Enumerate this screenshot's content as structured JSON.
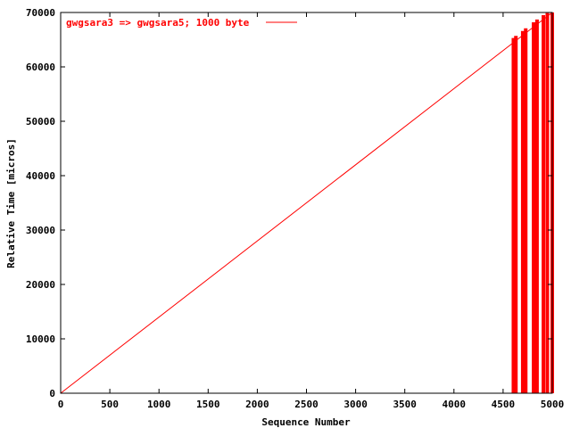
{
  "chart_data": {
    "type": "line",
    "title": "",
    "xlabel": "Sequence Number",
    "ylabel": "Relative Time [micros]",
    "xlim": [
      0,
      5000
    ],
    "ylim": [
      0,
      70000
    ],
    "x_ticks": [
      0,
      500,
      1000,
      1500,
      2000,
      2500,
      3000,
      3500,
      4000,
      4500,
      5000
    ],
    "y_ticks": [
      0,
      10000,
      20000,
      30000,
      40000,
      50000,
      60000,
      70000
    ],
    "grid": false,
    "legend_position": "top-left",
    "series": [
      {
        "name": "gwgsara3 => gwgsara5; 1000 byte",
        "color": "#ff0000",
        "line": {
          "x": [
            0,
            5000
          ],
          "y": [
            0,
            70000
          ]
        },
        "spikes": [
          {
            "x": 4605,
            "y_from": 0,
            "y_to": 65300
          },
          {
            "x": 4630,
            "y_from": 0,
            "y_to": 65700
          },
          {
            "x": 4700,
            "y_from": 0,
            "y_to": 66600
          },
          {
            "x": 4730,
            "y_from": 0,
            "y_to": 67100
          },
          {
            "x": 4810,
            "y_from": 0,
            "y_to": 68200
          },
          {
            "x": 4845,
            "y_from": 0,
            "y_to": 68700
          },
          {
            "x": 4910,
            "y_from": 0,
            "y_to": 69500
          },
          {
            "x": 4950,
            "y_from": 0,
            "y_to": 69900
          },
          {
            "x": 5000,
            "y_from": 0,
            "y_to": 70000
          }
        ]
      }
    ]
  }
}
